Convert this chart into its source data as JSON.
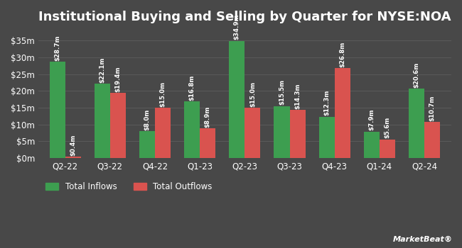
{
  "title": "Institutional Buying and Selling by Quarter for NYSE:NOA",
  "quarters": [
    "Q2-22",
    "Q3-22",
    "Q4-22",
    "Q1-23",
    "Q2-23",
    "Q3-23",
    "Q4-23",
    "Q1-24",
    "Q2-24"
  ],
  "inflows": [
    28.7,
    22.1,
    8.0,
    16.8,
    34.9,
    15.5,
    12.3,
    7.9,
    20.6
  ],
  "outflows": [
    0.4,
    19.4,
    15.0,
    8.9,
    15.0,
    14.3,
    26.8,
    5.6,
    10.7
  ],
  "inflow_labels": [
    "$28.7m",
    "$22.1m",
    "$8.0m",
    "$16.8m",
    "$34.9m",
    "$15.5m",
    "$12.3m",
    "$7.9m",
    "$20.6m"
  ],
  "outflow_labels": [
    "$0.4m",
    "$19.4m",
    "$15.0m",
    "$8.9m",
    "$15.0m",
    "$14.3m",
    "$26.8m",
    "$5.6m",
    "$10.7m"
  ],
  "inflow_color": "#3d9e50",
  "outflow_color": "#d9534f",
  "background_color": "#484848",
  "grid_color": "#5a5a5a",
  "text_color": "#ffffff",
  "legend_inflow": "Total Inflows",
  "legend_outflow": "Total Outflows",
  "ylim": [
    0,
    38
  ],
  "yticks": [
    0,
    5,
    10,
    15,
    20,
    25,
    30,
    35
  ],
  "ytick_labels": [
    "$0m",
    "$5m",
    "$10m",
    "$15m",
    "$20m",
    "$25m",
    "$30m",
    "$35m"
  ],
  "bar_width": 0.35,
  "label_fontsize": 6.2,
  "title_fontsize": 13,
  "tick_fontsize": 8.5,
  "legend_fontsize": 8.5
}
